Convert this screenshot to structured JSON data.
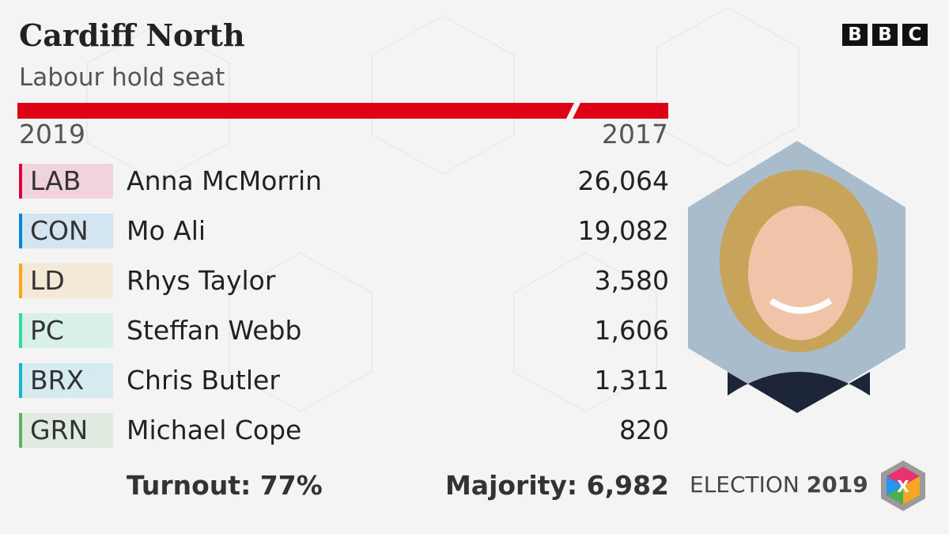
{
  "header": {
    "title": "Cardiff North",
    "subtitle": "Labour hold seat",
    "logo": "BBC"
  },
  "years": {
    "current": "2019",
    "previous": "2017"
  },
  "table": {
    "rows": [
      {
        "party": "LAB",
        "candidate": "Anna McMorrin",
        "votes": "26,064",
        "color": "#e4003b"
      },
      {
        "party": "CON",
        "candidate": "Mo Ali",
        "votes": "19,082",
        "color": "#0087dc"
      },
      {
        "party": "LD",
        "candidate": "Rhys Taylor",
        "votes": "3,580",
        "color": "#faa61a"
      },
      {
        "party": "PC",
        "candidate": "Steffan Webb",
        "votes": "1,606",
        "color": "#2edc9b"
      },
      {
        "party": "BRX",
        "candidate": "Chris Butler",
        "votes": "1,311",
        "color": "#12b6cf"
      },
      {
        "party": "GRN",
        "candidate": "Michael Cope",
        "votes": "820",
        "color": "#5fb25f"
      }
    ]
  },
  "footer": {
    "turnout": "Turnout: 77%",
    "majority": "Majority: 6,982",
    "election": "ELECTION",
    "year": "2019",
    "badge": "X"
  }
}
